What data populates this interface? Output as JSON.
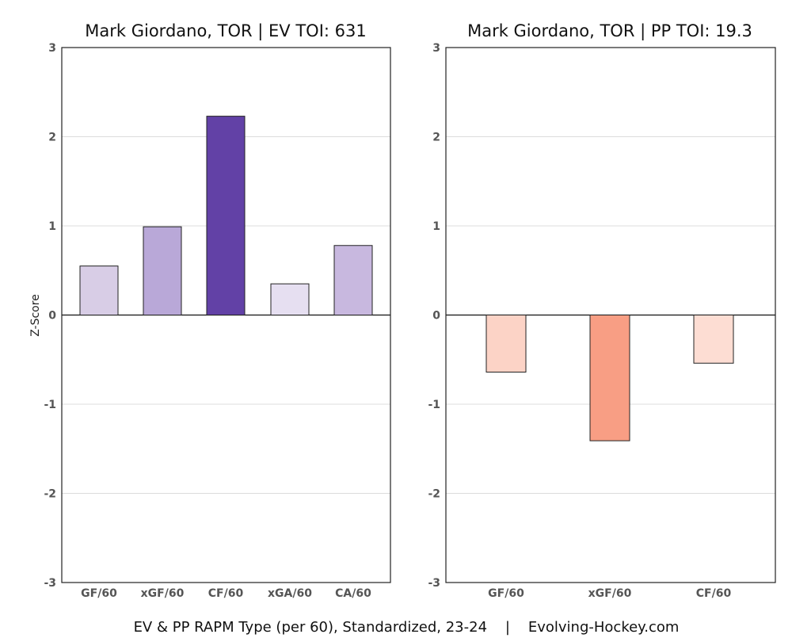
{
  "caption": "EV & PP RAPM Type (per 60), Standardized, 23-24    |    Evolving-Hockey.com",
  "chart_data": [
    {
      "type": "bar",
      "title": "Mark Giordano, TOR  |  EV TOI: 631",
      "ylabel": "Z-Score",
      "xlabel": "",
      "ylim": [
        -3,
        3
      ],
      "yticks": [
        -3,
        -2,
        -1,
        0,
        1,
        2,
        3
      ],
      "grid": true,
      "categories": [
        "GF/60",
        "xGF/60",
        "CF/60",
        "xGA/60",
        "CA/60"
      ],
      "values": [
        0.55,
        0.99,
        2.23,
        0.35,
        0.78
      ],
      "colors": [
        "#d8cde6",
        "#b9a8d8",
        "#6241a6",
        "#e6dff1",
        "#c8b8df"
      ]
    },
    {
      "type": "bar",
      "title": "Mark Giordano, TOR  |  PP TOI: 19.3",
      "ylabel": "",
      "xlabel": "",
      "ylim": [
        -3,
        3
      ],
      "yticks": [
        -3,
        -2,
        -1,
        0,
        1,
        2,
        3
      ],
      "grid": true,
      "categories": [
        "GF/60",
        "xGF/60",
        "CF/60"
      ],
      "values": [
        -0.64,
        -1.41,
        -0.54
      ],
      "colors": [
        "#fcd3c6",
        "#f89e84",
        "#fdddd3"
      ]
    }
  ]
}
